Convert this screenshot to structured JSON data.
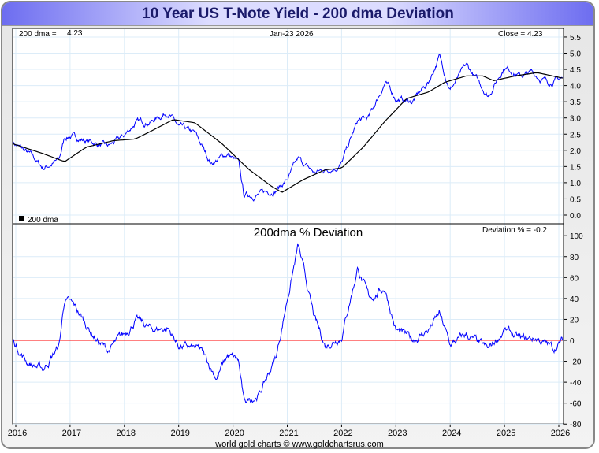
{
  "title": "10 Year US T-Note Yield - 200 dma Deviation",
  "footer": "world gold charts © www.goldchartsrus.com",
  "colors": {
    "price": "#0000ff",
    "dma": "#000000",
    "zero": "#ff0000",
    "grid": "#dcecf8"
  },
  "chart_data": [
    {
      "type": "line",
      "title": "",
      "header": {
        "dma_label": "200 dma =",
        "dma_value": "4.23",
        "date": "Jan-23  2026",
        "close": "Close = 4.23"
      },
      "legend": "200 dma",
      "ylim": [
        0,
        5.5
      ],
      "yticks": [
        "0.0",
        "0.5",
        "1.0",
        "1.5",
        "2.0",
        "2.5",
        "3.0",
        "3.5",
        "4.0",
        "4.5",
        "5.0",
        "5.5"
      ],
      "series": [
        {
          "name": "10Y Yield",
          "x": [
            2015.95,
            2016.3,
            2016.5,
            2016.8,
            2016.9,
            2017.0,
            2017.3,
            2017.7,
            2018.0,
            2018.2,
            2018.5,
            2018.8,
            2019.0,
            2019.3,
            2019.6,
            2019.9,
            2020.1,
            2020.2,
            2020.5,
            2020.8,
            2021.0,
            2021.2,
            2021.5,
            2021.9,
            2022.0,
            2022.3,
            2022.5,
            2022.8,
            2023.0,
            2023.3,
            2023.6,
            2023.8,
            2024.0,
            2024.3,
            2024.7,
            2025.0,
            2025.3,
            2025.5,
            2025.8,
            2026.07
          ],
          "values": [
            2.25,
            1.8,
            1.45,
            1.7,
            2.4,
            2.45,
            2.3,
            2.1,
            2.45,
            2.85,
            2.9,
            3.2,
            2.7,
            2.5,
            1.6,
            1.9,
            1.6,
            0.6,
            0.65,
            0.8,
            1.1,
            1.7,
            1.3,
            1.5,
            1.6,
            2.9,
            3.0,
            4.1,
            3.6,
            3.5,
            4.1,
            4.9,
            3.9,
            4.6,
            3.7,
            4.6,
            4.3,
            4.4,
            4.1,
            4.23
          ]
        },
        {
          "name": "200 dma",
          "x": [
            2015.95,
            2016.5,
            2016.9,
            2017.3,
            2017.8,
            2018.2,
            2018.5,
            2018.9,
            2019.3,
            2019.8,
            2020.3,
            2020.7,
            2020.9,
            2021.3,
            2021.7,
            2022.0,
            2022.4,
            2022.8,
            2023.2,
            2023.6,
            2023.9,
            2024.3,
            2024.6,
            2024.8,
            2025.2,
            2025.6,
            2026.07
          ],
          "values": [
            2.2,
            1.9,
            1.65,
            2.1,
            2.3,
            2.35,
            2.6,
            2.95,
            2.85,
            2.2,
            1.4,
            0.9,
            0.7,
            1.1,
            1.4,
            1.45,
            2.1,
            2.9,
            3.6,
            3.8,
            4.1,
            4.3,
            4.3,
            4.15,
            4.3,
            4.4,
            4.23
          ]
        }
      ]
    },
    {
      "type": "line",
      "title": "200dma  %  Deviation",
      "readout": "Deviation % = -0.2",
      "ylim": [
        -80,
        100
      ],
      "yticks": [
        "-80",
        "-60",
        "-40",
        "-20",
        "0",
        "20",
        "40",
        "60",
        "80",
        "100"
      ],
      "series": [
        {
          "name": "Deviation %",
          "x": [
            2015.95,
            2016.2,
            2016.5,
            2016.8,
            2016.9,
            2017.1,
            2017.5,
            2017.7,
            2018.0,
            2018.2,
            2018.5,
            2018.8,
            2019.0,
            2019.4,
            2019.7,
            2019.9,
            2020.1,
            2020.2,
            2020.5,
            2020.8,
            2021.0,
            2021.2,
            2021.5,
            2021.7,
            2022.0,
            2022.3,
            2022.5,
            2022.8,
            2023.0,
            2023.3,
            2023.6,
            2023.8,
            2024.0,
            2024.3,
            2024.7,
            2025.0,
            2025.3,
            2025.6,
            2025.9,
            2026.07
          ],
          "values": [
            0,
            -20,
            -28,
            -5,
            40,
            30,
            0,
            -10,
            5,
            20,
            10,
            12,
            -5,
            -10,
            -35,
            -15,
            -20,
            -60,
            -50,
            -15,
            40,
            90,
            20,
            -5,
            5,
            70,
            40,
            50,
            10,
            0,
            10,
            25,
            -5,
            5,
            -10,
            10,
            0,
            2,
            -8,
            -0.2
          ]
        }
      ]
    },
    {
      "xticks": [
        "2016",
        "2017",
        "2018",
        "2019",
        "2020",
        "2021",
        "2022",
        "2023",
        "2024",
        "2025",
        "2026"
      ]
    }
  ]
}
